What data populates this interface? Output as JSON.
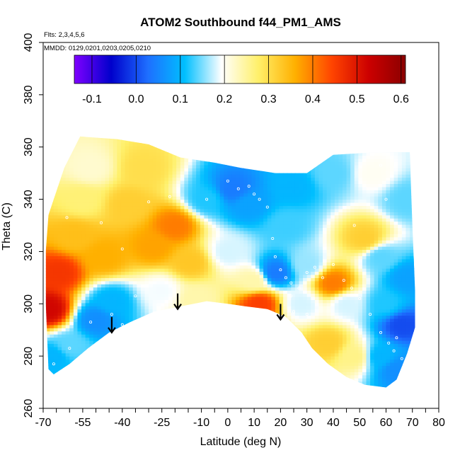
{
  "chart_data": {
    "type": "heatmap",
    "title": "ATOM2 Southbound f44_PM1_AMS",
    "flights_label": "Flts: 2,3,4,5,6",
    "dates_label": "MMDD: 0129,0201,0203,0205,0210",
    "xlabel": "Latitude (deg N)",
    "ylabel": "Theta (C)",
    "xlim": [
      -70,
      80
    ],
    "ylim": [
      260,
      400
    ],
    "x_tick_labels": [
      "-70",
      "-55",
      "-40",
      "-25",
      "-10",
      "0",
      "10",
      "20",
      "30",
      "40",
      "50",
      "60",
      "70",
      "80"
    ],
    "x_tick_values": [
      -70,
      -55,
      -40,
      -25,
      -10,
      0,
      10,
      20,
      30,
      40,
      50,
      60,
      70,
      80
    ],
    "x_minor_ticks": [
      -65,
      -60,
      -50,
      -45,
      -35,
      -30,
      -20,
      -15,
      -5,
      5,
      15,
      25,
      35,
      45,
      55,
      65,
      75
    ],
    "y_tick_labels": [
      "260",
      "280",
      "300",
      "320",
      "340",
      "360",
      "380",
      "400"
    ],
    "y_tick_values": [
      260,
      280,
      300,
      320,
      340,
      360,
      380,
      400
    ],
    "colorbar": {
      "range": [
        -0.14,
        0.61
      ],
      "tick_labels": [
        "-0.1",
        "0.0",
        "0.1",
        "0.2",
        "0.3",
        "0.4",
        "0.5",
        "0.6"
      ],
      "tick_values": [
        -0.1,
        0.0,
        0.1,
        0.2,
        0.3,
        0.4,
        0.5,
        0.6
      ],
      "colors": [
        "#7f00ff",
        "#0000cc",
        "#1e6fff",
        "#00bfff",
        "#ffffff",
        "#fff06a",
        "#ffb000",
        "#ff4400",
        "#cc0000",
        "#8b0000"
      ]
    },
    "arrows": [
      {
        "x": -44,
        "theta": 289
      },
      {
        "x": -19,
        "theta": 298
      },
      {
        "x": 20,
        "theta": 294
      }
    ],
    "coverage_outline": [
      [
        -68,
        275
      ],
      [
        -66,
        273
      ],
      [
        -60,
        277
      ],
      [
        -53,
        283
      ],
      [
        -45,
        289
      ],
      [
        -37,
        293
      ],
      [
        -28,
        297
      ],
      [
        -18,
        299
      ],
      [
        -8,
        301
      ],
      [
        0,
        300
      ],
      [
        7,
        299
      ],
      [
        15,
        298
      ],
      [
        22,
        295
      ],
      [
        28,
        289
      ],
      [
        32,
        283
      ],
      [
        38,
        277
      ],
      [
        45,
        272
      ],
      [
        52,
        269
      ],
      [
        60,
        268
      ],
      [
        64,
        271
      ],
      [
        68,
        281
      ],
      [
        71,
        291
      ],
      [
        71,
        305
      ],
      [
        70,
        330
      ],
      [
        69,
        358
      ],
      [
        56,
        358
      ],
      [
        40,
        357
      ],
      [
        30,
        350
      ],
      [
        18,
        350
      ],
      [
        5,
        352
      ],
      [
        -5,
        354
      ],
      [
        -18,
        356
      ],
      [
        -30,
        361
      ],
      [
        -42,
        363
      ],
      [
        -56,
        364
      ],
      [
        -62,
        352
      ],
      [
        -66,
        340
      ],
      [
        -68,
        334
      ],
      [
        -69,
        320
      ],
      [
        -69,
        300
      ]
    ],
    "value_field": [
      {
        "x": -68,
        "theta": 298,
        "value": 0.52
      },
      {
        "x": -64,
        "theta": 312,
        "value": 0.46
      },
      {
        "x": -58,
        "theta": 326,
        "value": 0.34
      },
      {
        "x": -55,
        "theta": 340,
        "value": 0.27
      },
      {
        "x": -52,
        "theta": 352,
        "value": 0.22
      },
      {
        "x": -47,
        "theta": 318,
        "value": 0.36
      },
      {
        "x": -44,
        "theta": 301,
        "value": 0.1
      },
      {
        "x": -50,
        "theta": 294,
        "value": 0.06
      },
      {
        "x": -60,
        "theta": 284,
        "value": 0.14
      },
      {
        "x": -66,
        "theta": 280,
        "value": 0.1
      },
      {
        "x": -38,
        "theta": 338,
        "value": 0.32
      },
      {
        "x": -32,
        "theta": 352,
        "value": 0.3
      },
      {
        "x": -28,
        "theta": 322,
        "value": 0.37
      },
      {
        "x": -20,
        "theta": 330,
        "value": 0.4
      },
      {
        "x": -14,
        "theta": 316,
        "value": 0.33
      },
      {
        "x": -25,
        "theta": 305,
        "value": 0.19
      },
      {
        "x": -12,
        "theta": 302,
        "value": 0.24
      },
      {
        "x": -8,
        "theta": 340,
        "value": 0.12
      },
      {
        "x": 2,
        "theta": 344,
        "value": 0.04
      },
      {
        "x": 8,
        "theta": 338,
        "value": 0.08
      },
      {
        "x": 0,
        "theta": 320,
        "value": 0.18
      },
      {
        "x": 10,
        "theta": 309,
        "value": 0.24
      },
      {
        "x": 12,
        "theta": 300,
        "value": 0.45
      },
      {
        "x": 18,
        "theta": 312,
        "value": 0.04
      },
      {
        "x": 22,
        "theta": 330,
        "value": 0.13
      },
      {
        "x": 28,
        "theta": 300,
        "value": 0.18
      },
      {
        "x": 30,
        "theta": 315,
        "value": 0.16
      },
      {
        "x": 40,
        "theta": 308,
        "value": 0.4
      },
      {
        "x": 45,
        "theta": 300,
        "value": 0.18
      },
      {
        "x": 38,
        "theta": 285,
        "value": 0.32
      },
      {
        "x": 48,
        "theta": 280,
        "value": 0.26
      },
      {
        "x": 52,
        "theta": 325,
        "value": 0.32
      },
      {
        "x": 58,
        "theta": 318,
        "value": 0.14
      },
      {
        "x": 60,
        "theta": 300,
        "value": 0.12
      },
      {
        "x": 66,
        "theta": 292,
        "value": 0.0
      },
      {
        "x": 68,
        "theta": 310,
        "value": 0.08
      },
      {
        "x": 68,
        "theta": 340,
        "value": 0.14
      },
      {
        "x": 55,
        "theta": 350,
        "value": 0.2
      },
      {
        "x": 40,
        "theta": 350,
        "value": 0.14
      },
      {
        "x": 25,
        "theta": 345,
        "value": 0.1
      },
      {
        "x": 58,
        "theta": 280,
        "value": 0.1
      },
      {
        "x": 64,
        "theta": 275,
        "value": 0.06
      }
    ],
    "sample_points": [
      {
        "x": -61,
        "theta": 333
      },
      {
        "x": -48,
        "theta": 331
      },
      {
        "x": -40,
        "theta": 321
      },
      {
        "x": -30,
        "theta": 339
      },
      {
        "x": -22,
        "theta": 341
      },
      {
        "x": -8,
        "theta": 340
      },
      {
        "x": 0,
        "theta": 347
      },
      {
        "x": 4,
        "theta": 344
      },
      {
        "x": 8,
        "theta": 345
      },
      {
        "x": 10,
        "theta": 342
      },
      {
        "x": 12,
        "theta": 340
      },
      {
        "x": 15,
        "theta": 337
      },
      {
        "x": 17,
        "theta": 325
      },
      {
        "x": 18,
        "theta": 318
      },
      {
        "x": 20,
        "theta": 313
      },
      {
        "x": 22,
        "theta": 310
      },
      {
        "x": 24,
        "theta": 308
      },
      {
        "x": 24,
        "theta": 303
      },
      {
        "x": 27,
        "theta": 306
      },
      {
        "x": 30,
        "theta": 312
      },
      {
        "x": 33,
        "theta": 314
      },
      {
        "x": 36,
        "theta": 310
      },
      {
        "x": 40,
        "theta": 315
      },
      {
        "x": 44,
        "theta": 309
      },
      {
        "x": 47,
        "theta": 306
      },
      {
        "x": 50,
        "theta": 302
      },
      {
        "x": 54,
        "theta": 296
      },
      {
        "x": 58,
        "theta": 289
      },
      {
        "x": 61,
        "theta": 285
      },
      {
        "x": 63,
        "theta": 282
      },
      {
        "x": 64,
        "theta": 287
      },
      {
        "x": 66,
        "theta": 279
      },
      {
        "x": 68,
        "theta": 272
      },
      {
        "x": -60,
        "theta": 283
      },
      {
        "x": -52,
        "theta": 293
      },
      {
        "x": -44,
        "theta": 296
      },
      {
        "x": -40,
        "theta": 292
      },
      {
        "x": -35,
        "theta": 303
      },
      {
        "x": -66,
        "theta": 277
      },
      {
        "x": 48,
        "theta": 330
      },
      {
        "x": 58,
        "theta": 353
      },
      {
        "x": 60,
        "theta": 340
      },
      {
        "x": 25,
        "theta": 297
      },
      {
        "x": 30,
        "theta": 296
      }
    ]
  }
}
